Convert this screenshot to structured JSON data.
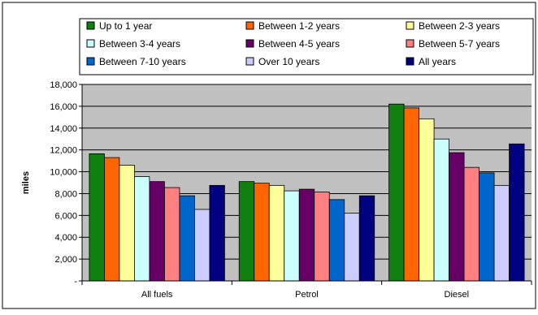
{
  "chart_data": {
    "type": "bar",
    "title": "",
    "xlabel": "",
    "ylabel": "miles",
    "ylim": [
      0,
      18000
    ],
    "yticks": [
      0,
      2000,
      4000,
      6000,
      8000,
      10000,
      12000,
      14000,
      16000,
      18000
    ],
    "ytick_labels": [
      "-",
      "2,000",
      "4,000",
      "6,000",
      "8,000",
      "10,000",
      "12,000",
      "14,000",
      "16,000",
      "18,000"
    ],
    "grid": true,
    "legend_position": "top",
    "categories": [
      "All fuels",
      "Petrol",
      "Diesel"
    ],
    "series": [
      {
        "name": "Up to 1 year",
        "color": "#108010",
        "values": [
          11650,
          9100,
          16200
        ]
      },
      {
        "name": "Between 1-2 years",
        "color": "#ff6600",
        "values": [
          11300,
          8950,
          15850
        ]
      },
      {
        "name": "Between 2-3 years",
        "color": "#ffff99",
        "values": [
          10600,
          8750,
          14850
        ]
      },
      {
        "name": "Between 3-4 years",
        "color": "#ccffff",
        "values": [
          9550,
          8250,
          13000
        ]
      },
      {
        "name": "Between 4-5 years",
        "color": "#660066",
        "values": [
          9100,
          8400,
          11750
        ]
      },
      {
        "name": "Between 5-7 years",
        "color": "#ff8080",
        "values": [
          8550,
          8150,
          10400
        ]
      },
      {
        "name": "Between 7-10 years",
        "color": "#0066cc",
        "values": [
          7800,
          7450,
          9900
        ]
      },
      {
        "name": "Over 10 years",
        "color": "#ccccff",
        "values": [
          6550,
          6200,
          8750
        ]
      },
      {
        "name": "All years",
        "color": "#000080",
        "values": [
          8750,
          7800,
          12550
        ]
      }
    ]
  }
}
